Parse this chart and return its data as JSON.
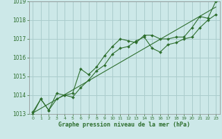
{
  "title": "Graphe pression niveau de la mer (hPa)",
  "background_color": "#cce8e8",
  "grid_color": "#aacccc",
  "line_color": "#2d6e2d",
  "text_color": "#2d6e2d",
  "xlim": [
    -0.5,
    23.5
  ],
  "ylim": [
    1013,
    1019
  ],
  "xticks": [
    0,
    1,
    2,
    3,
    4,
    5,
    6,
    7,
    8,
    9,
    10,
    11,
    12,
    13,
    14,
    15,
    16,
    17,
    18,
    19,
    20,
    21,
    22,
    23
  ],
  "yticks": [
    1013,
    1014,
    1015,
    1016,
    1017,
    1018,
    1019
  ],
  "series": [
    {
      "x": [
        0,
        1,
        2,
        3,
        4,
        5,
        6,
        7,
        8,
        9,
        10,
        11,
        12,
        13,
        14,
        15,
        16,
        17,
        18,
        19,
        20,
        21,
        22,
        23
      ],
      "y": [
        1013.1,
        1013.8,
        1013.2,
        1014.1,
        1014.0,
        1014.1,
        1015.4,
        1015.1,
        1015.5,
        1016.1,
        1016.6,
        1017.0,
        1016.9,
        1016.8,
        1017.2,
        1017.2,
        1017.0,
        1017.0,
        1017.1,
        1017.1,
        1017.6,
        1018.2,
        1018.1,
        1019.0
      ],
      "marker": true
    },
    {
      "x": [
        0,
        1,
        2,
        3,
        4,
        5,
        6,
        7,
        8,
        9,
        10,
        11,
        12,
        13,
        14,
        15,
        16,
        17,
        18,
        19,
        20,
        21,
        22,
        23
      ],
      "y": [
        1013.0,
        1013.8,
        1013.2,
        1013.8,
        1014.0,
        1013.9,
        1014.4,
        1014.8,
        1015.3,
        1015.6,
        1016.2,
        1016.5,
        1016.6,
        1016.9,
        1017.1,
        1016.5,
        1016.3,
        1016.7,
        1016.8,
        1017.0,
        1017.1,
        1017.6,
        1018.0,
        1018.3
      ],
      "marker": true
    },
    {
      "x": [
        0,
        23
      ],
      "y": [
        1013.05,
        1018.7
      ],
      "marker": false
    }
  ]
}
